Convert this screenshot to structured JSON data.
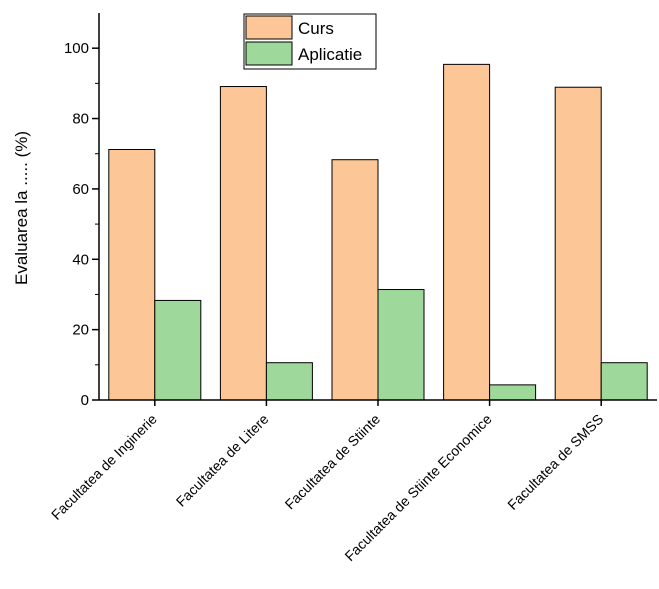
{
  "chart_data": {
    "type": "bar",
    "categories": [
      "Facultatea de Inginerie",
      "Facultatea de Litere",
      "Facultatea de Stiinte",
      "Facultatea de Stiinte Economice",
      "Facultatea  de SMSS"
    ],
    "series": [
      {
        "name": "Curs",
        "values": [
          71.2,
          89.1,
          68.3,
          95.4,
          88.9
        ],
        "color": "#fcc696"
      },
      {
        "name": "Aplicatie",
        "values": [
          28.3,
          10.6,
          31.4,
          4.3,
          10.6
        ],
        "color": "#9ed89a"
      }
    ],
    "xlabel": "",
    "ylabel": "Evaluarea la ..... (%)",
    "ylim": [
      0,
      110
    ],
    "yticks": [
      0,
      20,
      40,
      60,
      80,
      100
    ],
    "grid": false,
    "legend_position": "top-center"
  }
}
